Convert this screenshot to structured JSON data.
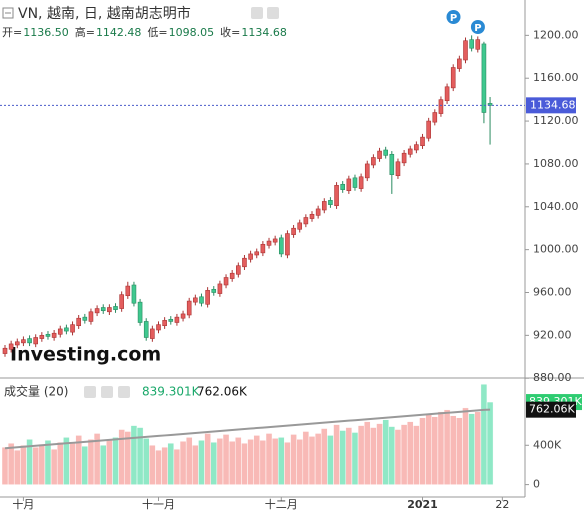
{
  "chart_data": [
    {
      "type": "candlestick",
      "title": "VN, 越南, 日, 越南胡志明市",
      "ohlc_legend": [
        {
          "label": "开=",
          "value": "1136.50"
        },
        {
          "label": "高=",
          "value": "1142.48"
        },
        {
          "label": "低=",
          "value": "1098.05"
        },
        {
          "label": "收=",
          "value": "1134.68"
        }
      ],
      "watermark": "Investing.com",
      "annotations": [
        "P",
        "P"
      ],
      "last_label": "1134.68",
      "last_value": 1134.68,
      "up_color": "#e35d5d",
      "down_color": "#3fc88f",
      "ylim": [
        883,
        1233
      ],
      "yticks": [
        {
          "value": 880,
          "label": "880.00"
        },
        {
          "value": 920,
          "label": "920.00"
        },
        {
          "value": 960,
          "label": "960.00"
        },
        {
          "value": 1000,
          "label": "1000.00"
        },
        {
          "value": 1040,
          "label": "1040.00"
        },
        {
          "value": 1080,
          "label": "1080.00"
        },
        {
          "value": 1120,
          "label": "1120.00"
        },
        {
          "value": 1160,
          "label": "1160.00"
        },
        {
          "value": 1200,
          "label": "1200.00"
        }
      ],
      "open": [
        903,
        907,
        911,
        913,
        917,
        912,
        917,
        921,
        918,
        921,
        927,
        923,
        929,
        937,
        933,
        941,
        946,
        942,
        947,
        945,
        957,
        967,
        951,
        933,
        917,
        925,
        929,
        935,
        932,
        936,
        939,
        951,
        956,
        949,
        963,
        959,
        967,
        973,
        977,
        984,
        991,
        995,
        997,
        1004,
        1007,
        1011,
        995,
        1014,
        1019,
        1024,
        1029,
        1032,
        1037,
        1046,
        1041,
        1061,
        1055,
        1067,
        1057,
        1067,
        1079,
        1085,
        1093,
        1089,
        1069,
        1081,
        1089,
        1093,
        1097,
        1104,
        1119,
        1127,
        1139,
        1151,
        1169,
        1177,
        1196,
        1187,
        1192,
        1136.5,
        null,
        null
      ],
      "high": [
        911,
        915,
        917,
        919,
        920,
        921,
        923,
        924,
        925,
        929,
        930,
        933,
        939,
        940,
        945,
        948,
        949,
        949,
        950,
        961,
        970,
        970,
        954,
        936,
        929,
        933,
        937,
        938,
        940,
        943,
        955,
        958,
        959,
        965,
        966,
        971,
        977,
        981,
        988,
        995,
        999,
        1001,
        1008,
        1011,
        1013,
        1014,
        1018,
        1023,
        1028,
        1033,
        1036,
        1041,
        1048,
        1049,
        1063,
        1064,
        1069,
        1070,
        1071,
        1083,
        1089,
        1095,
        1096,
        1092,
        1085,
        1093,
        1097,
        1101,
        1108,
        1123,
        1131,
        1143,
        1155,
        1173,
        1181,
        1198,
        1200,
        1199,
        1194,
        1142.48,
        null,
        null
      ],
      "low": [
        900,
        904,
        908,
        910,
        910,
        909,
        914,
        916,
        915,
        918,
        921,
        920,
        926,
        931,
        930,
        938,
        940,
        939,
        941,
        942,
        954,
        947,
        929,
        915,
        914,
        922,
        926,
        930,
        929,
        933,
        936,
        948,
        947,
        946,
        957,
        956,
        964,
        970,
        974,
        981,
        988,
        992,
        994,
        1001,
        1004,
        993,
        992,
        1011,
        1016,
        1021,
        1026,
        1029,
        1034,
        1039,
        1038,
        1053,
        1052,
        1055,
        1054,
        1064,
        1076,
        1082,
        1085,
        1052,
        1066,
        1078,
        1086,
        1090,
        1094,
        1101,
        1116,
        1124,
        1136,
        1148,
        1166,
        1174,
        1185,
        1184,
        1118,
        1098.05,
        null,
        null
      ],
      "close": [
        908,
        912,
        914,
        916,
        913,
        918,
        920,
        919,
        922,
        926,
        924,
        930,
        936,
        934,
        942,
        945,
        943,
        946,
        944,
        958,
        966,
        950,
        932,
        918,
        926,
        930,
        934,
        933,
        937,
        940,
        952,
        955,
        950,
        962,
        960,
        968,
        974,
        978,
        985,
        992,
        996,
        998,
        1005,
        1008,
        1010,
        996,
        1015,
        1020,
        1025,
        1030,
        1033,
        1038,
        1045,
        1042,
        1060,
        1056,
        1066,
        1058,
        1068,
        1080,
        1086,
        1092,
        1088,
        1070,
        1082,
        1090,
        1094,
        1098,
        1105,
        1120,
        1128,
        1140,
        1152,
        1170,
        1178,
        1195,
        1188,
        1196,
        1128,
        1134.68,
        null,
        null
      ]
    },
    {
      "type": "bar",
      "title": "成交量 (20)",
      "last_labels": [
        "839.301K",
        "762.06K"
      ],
      "categories": [
        null,
        null,
        null,
        "十月",
        null,
        null,
        null,
        null,
        null,
        null,
        null,
        null,
        null,
        null,
        null,
        null,
        null,
        null,
        null,
        null,
        null,
        null,
        null,
        null,
        null,
        "十一月",
        null,
        null,
        null,
        null,
        null,
        null,
        null,
        null,
        null,
        null,
        null,
        null,
        null,
        null,
        null,
        null,
        null,
        null,
        null,
        "十二月",
        null,
        null,
        null,
        null,
        null,
        null,
        null,
        null,
        null,
        null,
        null,
        null,
        null,
        null,
        null,
        null,
        null,
        null,
        null,
        null,
        null,
        null,
        "2021",
        null,
        null,
        null,
        null,
        null,
        null,
        null,
        null,
        null,
        null,
        null,
        null,
        "22"
      ],
      "ylim": [
        -126000,
        1084000
      ],
      "yticks": [
        0,
        {
          "value": 400000,
          "label": "400K"
        }
      ],
      "series": [
        {
          "name": "volume",
          "values": [
            380000,
            420000,
            350000,
            400000,
            460000,
            380000,
            410000,
            450000,
            360000,
            430000,
            480000,
            420000,
            500000,
            390000,
            460000,
            520000,
            400000,
            450000,
            480000,
            560000,
            540000,
            600000,
            580000,
            470000,
            400000,
            350000,
            380000,
            420000,
            360000,
            440000,
            480000,
            400000,
            450000,
            520000,
            430000,
            470000,
            510000,
            440000,
            480000,
            420000,
            460000,
            500000,
            450000,
            520000,
            470000,
            480000,
            430000,
            510000,
            460000,
            540000,
            490000,
            520000,
            570000,
            500000,
            610000,
            550000,
            580000,
            530000,
            600000,
            640000,
            580000,
            620000,
            660000,
            590000,
            560000,
            610000,
            640000,
            600000,
            680000,
            720000,
            690000,
            740000,
            760000,
            700000,
            680000,
            780000,
            720000,
            740000,
            1020000,
            839301,
            null,
            null
          ]
        },
        {
          "name": "ma",
          "color": "#999999",
          "values": [
            370000,
            375000,
            380000,
            385000,
            390000,
            395000,
            400000,
            405000,
            410000,
            415000,
            420000,
            425000,
            430000,
            435000,
            440000,
            445000,
            450000,
            455000,
            460000,
            465000,
            470000,
            475000,
            480000,
            485000,
            490000,
            495000,
            500000,
            505000,
            510000,
            515000,
            520000,
            525000,
            530000,
            535000,
            540000,
            545000,
            550000,
            555000,
            560000,
            565000,
            570000,
            575000,
            580000,
            585000,
            590000,
            595000,
            600000,
            605000,
            610000,
            615000,
            620000,
            625000,
            630000,
            635000,
            640000,
            645000,
            650000,
            655000,
            660000,
            665000,
            670000,
            675000,
            680000,
            685000,
            690000,
            695000,
            700000,
            705000,
            710000,
            715000,
            720000,
            725000,
            730000,
            735000,
            740000,
            745000,
            750000,
            755000,
            760000,
            762060,
            null,
            null
          ]
        }
      ]
    }
  ]
}
